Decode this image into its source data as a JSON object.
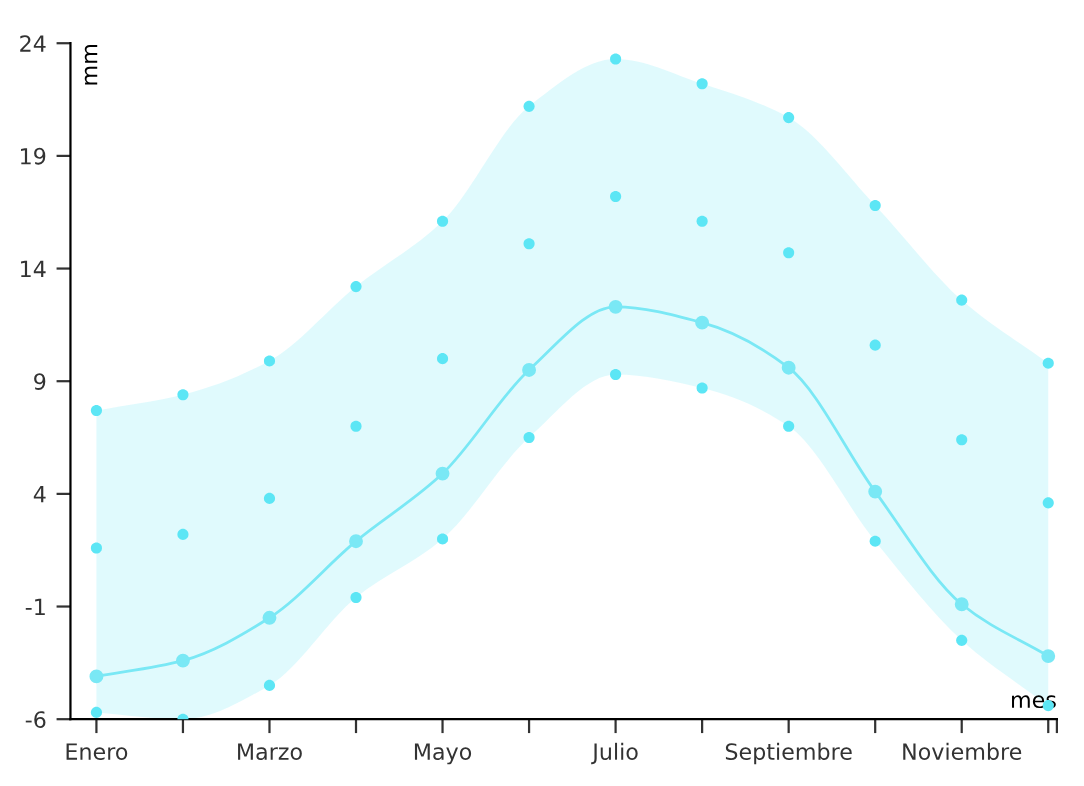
{
  "chart_data": {
    "type": "line",
    "ylabel": "mm",
    "xlabel": "mes",
    "categories": [
      "Enero",
      null,
      "Marzo",
      null,
      "Mayo",
      null,
      "Julio",
      null,
      "Septiembre",
      null,
      "Noviembre",
      null
    ],
    "series": [
      {
        "color": "#7ae8f5",
        "marker": "circle",
        "values": [
          -4.1,
          -3.4,
          -1.5,
          1.9,
          4.9,
          9.5,
          12.3,
          11.6,
          9.6,
          4.1,
          -0.9,
          -3.2
        ],
        "lower": [
          -5.7,
          -6.0,
          -4.5,
          -0.6,
          2.0,
          6.5,
          9.3,
          8.7,
          7.0,
          1.9,
          -2.5,
          -5.4
        ],
        "upper": [
          7.7,
          8.4,
          9.9,
          13.2,
          16.1,
          21.2,
          23.3,
          22.2,
          20.7,
          16.8,
          12.6,
          9.8
        ]
      },
      {
        "type": "scatter",
        "color": "#5ce6f5",
        "values": [
          7.7,
          8.4,
          9.9,
          13.2,
          16.1,
          21.2,
          23.3,
          22.2,
          20.7,
          16.8,
          12.6,
          9.8
        ]
      },
      {
        "type": "scatter",
        "color": "#5ce6f5",
        "values": [
          1.6,
          2.2,
          3.8,
          7.0,
          10.0,
          15.1,
          17.2,
          16.1,
          14.7,
          10.6,
          6.4,
          3.6
        ]
      },
      {
        "type": "scatter",
        "color": "#5ce6f5",
        "values": [
          -5.7,
          -6.0,
          -4.5,
          -0.6,
          2.0,
          6.5,
          9.3,
          8.7,
          7.0,
          1.9,
          -2.5,
          -5.4
        ]
      }
    ],
    "ylim": [
      -6,
      24
    ],
    "yticks": [
      -6,
      -1,
      4,
      9,
      14,
      19,
      24
    ],
    "grid": false,
    "legend": false
  }
}
